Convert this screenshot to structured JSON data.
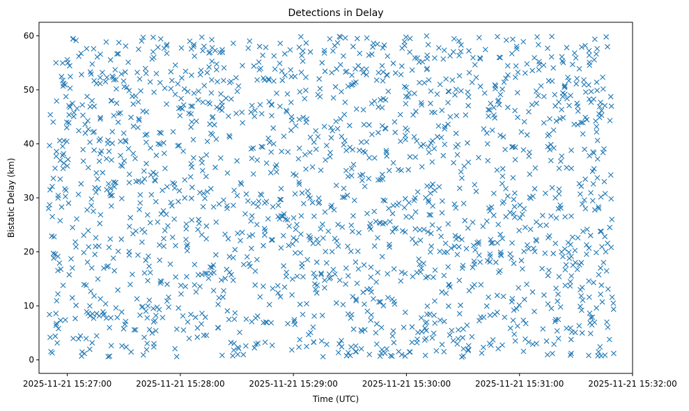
{
  "chart_data": {
    "type": "scatter",
    "title": "Detections in Delay",
    "xlabel": "Time (UTC)",
    "ylabel": "Bistatic Delay (km)",
    "marker": "x",
    "color": "#1f77b4",
    "xlim": [
      "2025-11-21 15:26:45",
      "2025-11-21 15:32:00"
    ],
    "ylim": [
      -2.5,
      62.5
    ],
    "x_tick_labels": [
      "2025-11-21 15:27:00",
      "2025-11-21 15:28:00",
      "2025-11-21 15:29:00",
      "2025-11-21 15:30:00",
      "2025-11-21 15:31:00",
      "2025-11-21 15:32:00"
    ],
    "y_tick_labels": [
      "0",
      "10",
      "20",
      "30",
      "40",
      "50",
      "60"
    ],
    "y_ticks": [
      0,
      10,
      20,
      30,
      40,
      50,
      60
    ],
    "series": [
      {
        "name": "detections",
        "data_range": {
          "x_start": "2025-11-21 15:26:50",
          "x_end": "2025-11-21 15:31:50",
          "y_min": 0.5,
          "y_max": 60.0
        },
        "points": [
          [
            "15:26:51",
            45.4
          ],
          [
            "15:26:52",
            32.1
          ],
          [
            "15:26:52",
            1.3
          ],
          [
            "15:26:53",
            22.8
          ],
          [
            "15:26:54",
            55.0
          ],
          [
            "15:26:55",
            12.2
          ],
          [
            "15:26:56",
            40.6
          ],
          [
            "15:26:57",
            28.3
          ],
          [
            "15:26:58",
            51.1
          ],
          [
            "15:26:59",
            7.4
          ],
          [
            "15:27:00",
            35.9
          ],
          [
            "15:27:02",
            18.7
          ],
          [
            "15:27:03",
            59.4
          ],
          [
            "15:27:05",
            26.1
          ],
          [
            "15:27:06",
            3.9
          ],
          [
            "15:27:08",
            47.2
          ],
          [
            "15:27:10",
            13.8
          ],
          [
            "15:27:12",
            40.3
          ],
          [
            "15:27:14",
            57.6
          ],
          [
            "15:27:15",
            21.0
          ],
          [
            "15:27:17",
            36.8
          ],
          [
            "15:27:19",
            8.9
          ],
          [
            "15:27:21",
            52.3
          ],
          [
            "15:27:23",
            30.4
          ],
          [
            "15:27:25",
            16.5
          ],
          [
            "15:27:27",
            44.0
          ],
          [
            "15:27:29",
            2.6
          ],
          [
            "15:27:31",
            58.1
          ],
          [
            "15:27:33",
            24.7
          ],
          [
            "15:27:35",
            38.2
          ],
          [
            "15:27:37",
            11.3
          ],
          [
            "15:27:39",
            49.8
          ],
          [
            "15:27:41",
            33.5
          ],
          [
            "15:27:43",
            19.2
          ],
          [
            "15:27:45",
            55.7
          ],
          [
            "15:27:47",
            5.4
          ],
          [
            "15:27:49",
            42.1
          ],
          [
            "15:27:51",
            27.6
          ],
          [
            "15:27:53",
            14.0
          ],
          [
            "15:27:55",
            50.2
          ],
          [
            "15:27:57",
            31.8
          ],
          [
            "15:27:59",
            9.6
          ],
          [
            "15:28:01",
            46.5
          ],
          [
            "15:28:03",
            22.3
          ],
          [
            "15:28:05",
            59.0
          ],
          [
            "15:28:07",
            37.4
          ],
          [
            "15:28:09",
            4.2
          ],
          [
            "15:28:11",
            53.6
          ],
          [
            "15:28:13",
            29.9
          ],
          [
            "15:28:15",
            15.1
          ],
          [
            "15:28:17",
            41.7
          ],
          [
            "15:28:19",
            25.5
          ],
          [
            "15:28:21",
            56.9
          ],
          [
            "15:28:23",
            12.8
          ],
          [
            "15:28:25",
            34.6
          ],
          [
            "15:28:27",
            48.3
          ],
          [
            "15:28:29",
            20.4
          ],
          [
            "15:28:31",
            2.1
          ],
          [
            "15:28:33",
            43.9
          ],
          [
            "15:28:35",
            30.7
          ],
          [
            "15:28:37",
            17.3
          ],
          [
            "15:28:39",
            54.4
          ],
          [
            "15:28:41",
            8.1
          ],
          [
            "15:28:43",
            39.5
          ],
          [
            "15:28:45",
            23.9
          ],
          [
            "15:28:47",
            51.8
          ],
          [
            "15:28:49",
            13.2
          ],
          [
            "15:28:51",
            36.1
          ],
          [
            "15:28:53",
            58.6
          ],
          [
            "15:28:55",
            27.0
          ],
          [
            "15:28:57",
            6.7
          ],
          [
            "15:28:59",
            45.0
          ],
          [
            "15:29:01",
            19.8
          ],
          [
            "15:29:03",
            32.9
          ],
          [
            "15:29:05",
            55.3
          ],
          [
            "15:29:07",
            10.4
          ],
          [
            "15:29:09",
            41.2
          ],
          [
            "15:29:11",
            26.6
          ],
          [
            "15:29:13",
            49.1
          ],
          [
            "15:29:15",
            3.5
          ],
          [
            "15:29:17",
            37.0
          ],
          [
            "15:29:19",
            15.9
          ],
          [
            "15:29:21",
            57.2
          ],
          [
            "15:29:23",
            22.0
          ],
          [
            "15:29:25",
            44.6
          ],
          [
            "15:29:27",
            30.1
          ],
          [
            "15:29:29",
            8.5
          ],
          [
            "15:29:31",
            52.7
          ],
          [
            "15:29:33",
            18.1
          ],
          [
            "15:29:35",
            38.8
          ],
          [
            "15:29:37",
            12.5
          ],
          [
            "15:29:39",
            59.6
          ],
          [
            "15:29:41",
            24.2
          ],
          [
            "15:29:43",
            47.9
          ],
          [
            "15:29:45",
            33.3
          ],
          [
            "15:29:47",
            1.9
          ],
          [
            "15:29:49",
            42.8
          ],
          [
            "15:29:51",
            20.9
          ],
          [
            "15:29:53",
            54.9
          ],
          [
            "15:29:55",
            28.7
          ],
          [
            "15:29:57",
            14.6
          ],
          [
            "15:29:59",
            50.6
          ],
          [
            "15:30:01",
            35.2
          ],
          [
            "15:30:03",
            6.1
          ],
          [
            "15:30:05",
            46.0
          ],
          [
            "15:30:07",
            17.7
          ],
          [
            "15:30:09",
            39.9
          ],
          [
            "15:30:11",
            56.4
          ],
          [
            "15:30:13",
            23.4
          ],
          [
            "15:30:15",
            10.9
          ],
          [
            "15:30:17",
            43.3
          ],
          [
            "15:30:19",
            29.4
          ],
          [
            "15:30:21",
            52.0
          ],
          [
            "15:30:23",
            4.6
          ],
          [
            "15:30:25",
            36.5
          ],
          [
            "15:30:27",
            19.5
          ],
          [
            "15:30:29",
            58.3
          ],
          [
            "15:30:31",
            25.8
          ],
          [
            "15:30:33",
            48.7
          ],
          [
            "15:30:35",
            13.5
          ],
          [
            "15:30:37",
            31.2
          ],
          [
            "15:30:39",
            55.9
          ],
          [
            "15:30:41",
            7.9
          ],
          [
            "15:30:43",
            40.0
          ],
          [
            "15:30:45",
            21.6
          ],
          [
            "15:30:47",
            50.9
          ],
          [
            "15:30:49",
            16.2
          ],
          [
            "15:30:51",
            34.0
          ],
          [
            "15:30:53",
            59.2
          ],
          [
            "15:30:55",
            27.3
          ],
          [
            "15:30:57",
            9.2
          ],
          [
            "15:30:59",
            44.9
          ],
          [
            "15:31:01",
            18.4
          ],
          [
            "15:31:03",
            53.1
          ],
          [
            "15:31:05",
            37.7
          ],
          [
            "15:31:07",
            2.9
          ],
          [
            "15:31:09",
            47.5
          ],
          [
            "15:31:11",
            24.9
          ],
          [
            "15:31:13",
            12.0
          ],
          [
            "15:31:15",
            41.5
          ],
          [
            "15:31:17",
            56.1
          ],
          [
            "15:31:19",
            30.0
          ],
          [
            "15:31:21",
            15.4
          ],
          [
            "15:31:23",
            49.4
          ],
          [
            "15:31:25",
            35.6
          ],
          [
            "15:31:27",
            5.9
          ],
          [
            "15:31:29",
            43.6
          ],
          [
            "15:31:31",
            22.6
          ],
          [
            "15:31:33",
            57.9
          ],
          [
            "15:31:35",
            28.0
          ],
          [
            "15:31:37",
            11.6
          ],
          [
            "15:31:39",
            38.5
          ],
          [
            "15:31:41",
            51.4
          ],
          [
            "15:31:43",
            17.0
          ],
          [
            "15:31:45",
            33.0
          ],
          [
            "15:31:46",
            59.8
          ],
          [
            "15:31:47",
            13.1
          ],
          [
            "15:31:48",
            44.3
          ],
          [
            "15:31:49",
            26.0
          ],
          [
            "15:31:50",
            1.2
          ]
        ]
      }
    ]
  }
}
